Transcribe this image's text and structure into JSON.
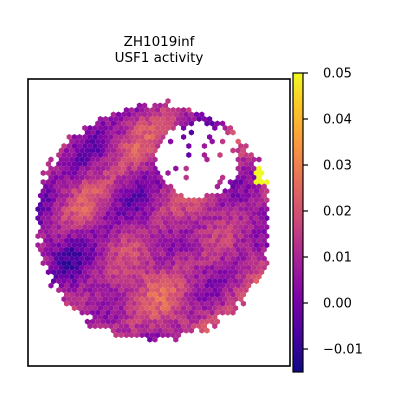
{
  "chart_data": {
    "type": "scatter",
    "title": "ZH1019inf",
    "subtitle": "USF1 activity",
    "xlabel": "",
    "ylabel": "",
    "x_ticks_visible": false,
    "y_ticks_visible": false,
    "colorbar": {
      "colormap": "plasma",
      "range": [
        -0.015,
        0.05
      ],
      "ticks": [
        -0.01,
        0.0,
        0.01,
        0.02,
        0.03,
        0.04,
        0.05
      ],
      "tick_labels": [
        "−0.01",
        "0.00",
        "0.01",
        "0.02",
        "0.03",
        "0.04",
        "0.05"
      ]
    },
    "spot_shape": "hexagon",
    "tissue_shape": "roughly circular section with an irregular notch cut out of the upper-right edge",
    "value_summary": {
      "typical_range": [
        -0.012,
        0.028
      ],
      "typical_center": 0.01,
      "maximum_spot_value": 0.05,
      "maximum_spot_location": "right edge, upper-middle"
    },
    "grid": false,
    "legend": "none"
  },
  "colors": {
    "frame": "#000000",
    "background": "#ffffff"
  }
}
